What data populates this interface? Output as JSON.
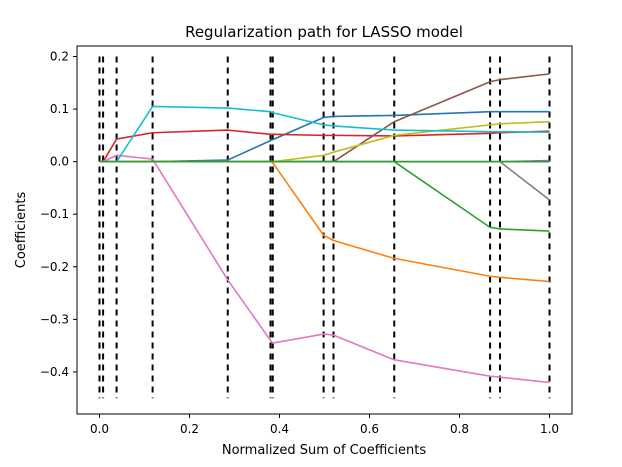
{
  "chart_data": {
    "type": "line",
    "title": "Regularization path for LASSO model",
    "xlabel": "Normalized Sum of Coefficients",
    "ylabel": "Coefficients",
    "xlim": [
      -0.05,
      1.05
    ],
    "ylim": [
      -0.48,
      0.22
    ],
    "x_ticks": [
      0.0,
      0.2,
      0.4,
      0.6,
      0.8,
      1.0
    ],
    "x_tick_labels": [
      "0.0",
      "0.2",
      "0.4",
      "0.6",
      "0.8",
      "1.0"
    ],
    "y_ticks": [
      0.2,
      0.1,
      0.0,
      -0.1,
      -0.2,
      -0.3,
      -0.4
    ],
    "y_tick_labels": [
      "0.2",
      "0.1",
      "0.0",
      "−0.1",
      "−0.2",
      "−0.3",
      "−0.4"
    ],
    "grid": false,
    "legend": "none",
    "knots": [
      0.0,
      0.008,
      0.038,
      0.118,
      0.285,
      0.38,
      0.385,
      0.498,
      0.52,
      0.655,
      0.868,
      0.89,
      1.0
    ],
    "knot_line_range": [
      -0.45,
      0.2
    ],
    "series": [
      {
        "color": "#1f77b4",
        "x": [
          0.0,
          0.008,
          0.038,
          0.118,
          0.285,
          0.38,
          0.385,
          0.498,
          0.52,
          0.655,
          0.868,
          0.89,
          1.0
        ],
        "y": [
          0.0,
          0.0,
          0.0,
          0.0,
          0.003,
          0.04,
          0.042,
          0.084,
          0.086,
          0.088,
          0.095,
          0.095,
          0.095
        ]
      },
      {
        "color": "#ff7f0e",
        "x": [
          0.0,
          0.008,
          0.038,
          0.118,
          0.285,
          0.38,
          0.385,
          0.498,
          0.52,
          0.655,
          0.868,
          0.89,
          1.0
        ],
        "y": [
          0.0,
          0.0,
          0.0,
          0.0,
          0.0,
          0.0,
          -0.002,
          -0.14,
          -0.15,
          -0.184,
          -0.218,
          -0.22,
          -0.228
        ]
      },
      {
        "color": "#2ca02c",
        "x": [
          0.0,
          0.008,
          0.038,
          0.118,
          0.285,
          0.38,
          0.385,
          0.498,
          0.52,
          0.655,
          0.868,
          0.89,
          1.0
        ],
        "y": [
          0.0,
          0.0,
          0.0,
          0.0,
          0.0,
          0.0,
          0.0,
          0.0,
          0.0,
          0.0,
          -0.125,
          -0.128,
          -0.132
        ]
      },
      {
        "color": "#d62728",
        "x": [
          0.0,
          0.008,
          0.038,
          0.118,
          0.285,
          0.38,
          0.385,
          0.498,
          0.52,
          0.655,
          0.868,
          0.89,
          1.0
        ],
        "y": [
          0.0,
          0.0,
          0.043,
          0.055,
          0.06,
          0.052,
          0.052,
          0.05,
          0.05,
          0.049,
          0.054,
          0.055,
          0.058
        ]
      },
      {
        "color": "#9467bd",
        "x": [
          0.0,
          0.008,
          0.038,
          0.118,
          0.285,
          0.38,
          0.385,
          0.498,
          0.52,
          0.655,
          0.868,
          0.89,
          1.0
        ],
        "y": [
          0.0,
          0.0,
          0.0,
          0.0,
          0.0,
          0.0,
          0.0,
          0.0,
          0.0,
          0.0,
          0.0,
          0.0,
          0.002
        ]
      },
      {
        "color": "#8c564b",
        "x": [
          0.0,
          0.008,
          0.038,
          0.118,
          0.285,
          0.38,
          0.385,
          0.498,
          0.52,
          0.655,
          0.868,
          0.89,
          1.0
        ],
        "y": [
          0.0,
          0.0,
          0.0,
          0.0,
          0.0,
          0.0,
          0.0,
          0.0,
          0.0,
          0.076,
          0.152,
          0.156,
          0.167
        ]
      },
      {
        "color": "#e377c2",
        "x": [
          0.0,
          0.008,
          0.038,
          0.118,
          0.285,
          0.38,
          0.385,
          0.498,
          0.52,
          0.655,
          0.868,
          0.89,
          1.0
        ],
        "y": [
          0.0,
          0.0,
          0.012,
          0.005,
          -0.225,
          -0.34,
          -0.345,
          -0.328,
          -0.33,
          -0.377,
          -0.408,
          -0.41,
          -0.42
        ]
      },
      {
        "color": "#7f7f7f",
        "x": [
          0.0,
          0.008,
          0.038,
          0.118,
          0.285,
          0.38,
          0.385,
          0.498,
          0.52,
          0.655,
          0.868,
          0.89,
          1.0
        ],
        "y": [
          0.0,
          0.0,
          0.0,
          0.0,
          0.0,
          0.0,
          0.0,
          0.0,
          0.0,
          0.0,
          0.0,
          0.0,
          -0.073
        ]
      },
      {
        "color": "#bcbd22",
        "x": [
          0.0,
          0.008,
          0.038,
          0.118,
          0.285,
          0.38,
          0.385,
          0.498,
          0.52,
          0.655,
          0.868,
          0.89,
          1.0
        ],
        "y": [
          0.0,
          0.0,
          0.0,
          0.0,
          0.0,
          0.0,
          0.0,
          0.012,
          0.018,
          0.05,
          0.07,
          0.072,
          0.076
        ]
      },
      {
        "color": "#17becf",
        "x": [
          0.0,
          0.008,
          0.038,
          0.118,
          0.285,
          0.38,
          0.385,
          0.498,
          0.52,
          0.655,
          0.868,
          0.89,
          1.0
        ],
        "y": [
          0.0,
          0.0,
          0.0,
          0.105,
          0.102,
          0.095,
          0.093,
          0.07,
          0.068,
          0.06,
          0.057,
          0.057,
          0.056
        ]
      },
      {
        "color": "#2ca02c",
        "x": [
          0.0,
          1.0
        ],
        "y": [
          0.0,
          0.0
        ]
      }
    ]
  }
}
